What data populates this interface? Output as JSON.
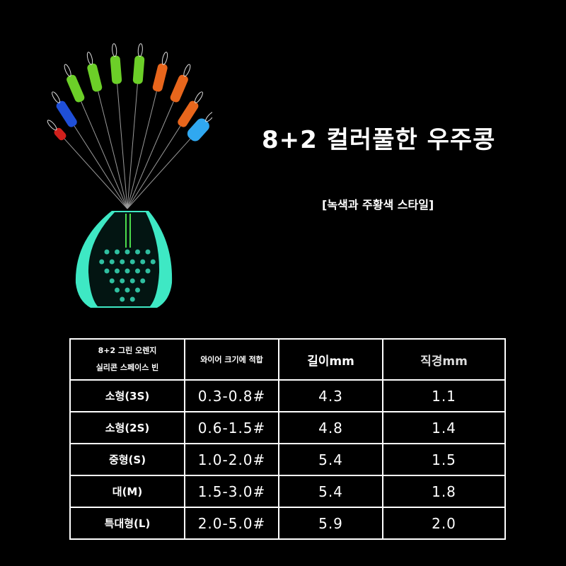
{
  "title": "8+2 컬러풀한 우주콩",
  "subtitle": "[녹색과 주황색 스타일]",
  "table": {
    "header": {
      "product_line1": "8+2 그린 오렌지",
      "product_line2": "실리콘 스페이스 빈",
      "wire": "와이어 크기에 적합",
      "length": "길이mm",
      "diameter": "직경mm"
    },
    "rows": [
      {
        "size": "소형(3S)",
        "wire": "0.3-0.8#",
        "length": "4.3",
        "diameter": "1.1"
      },
      {
        "size": "소형(2S)",
        "wire": "0.6-1.5#",
        "length": "4.8",
        "diameter": "1.4"
      },
      {
        "size": "중형(S)",
        "wire": "1.0-2.0#",
        "length": "5.4",
        "diameter": "1.5"
      },
      {
        "size": "대(M)",
        "wire": "1.5-3.0#",
        "length": "5.4",
        "diameter": "1.8"
      },
      {
        "size": "특대형(L)",
        "wire": "2.0-5.0#",
        "length": "5.9",
        "diameter": "2.0"
      }
    ]
  },
  "bead_colors": [
    "#d0201c",
    "#1f4fd8",
    "#6ccf28",
    "#6ccf28",
    "#6ccf28",
    "#6ccf28",
    "#e8661c",
    "#e8661c",
    "#e8661c",
    "#30a8f0"
  ],
  "holder_color": "#3ee8c4"
}
